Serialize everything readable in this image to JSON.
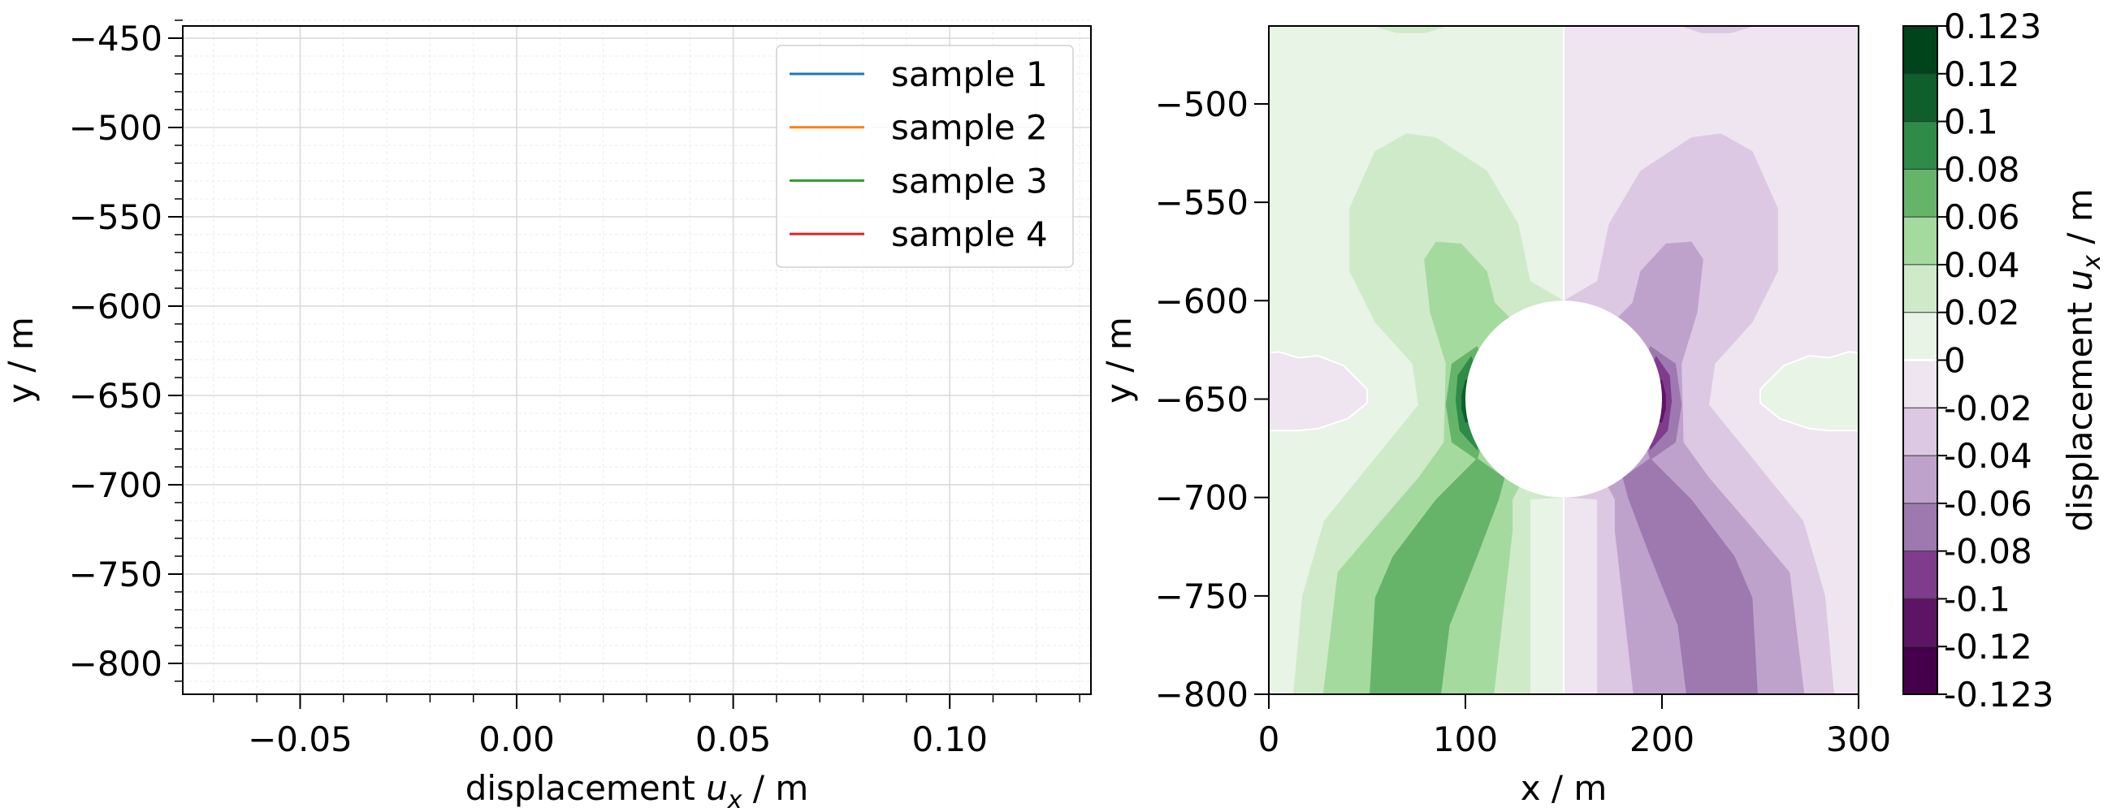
{
  "chart_data": [
    {
      "type": "line",
      "xlabel": {
        "pre": "displacement ",
        "var": "u",
        "sub": "x",
        "post": " / m"
      },
      "ylabel": "y / m",
      "xlim": [
        -0.0771,
        0.1326
      ],
      "ylim": [
        -817.3,
        -443.2
      ],
      "xticks": [
        -0.05,
        0.0,
        0.05,
        0.1
      ],
      "xtick_labels": [
        "−0.05",
        "0.00",
        "0.05",
        "0.10"
      ],
      "yticks": [
        -450,
        -500,
        -550,
        -600,
        -650,
        -700,
        -750,
        -800
      ],
      "ytick_labels": [
        "−450",
        "−500",
        "−550",
        "−600",
        "−650",
        "−700",
        "−750",
        "−800"
      ],
      "grid": true,
      "minor_grid": true,
      "legend_position": "top-right",
      "series": [
        {
          "name": "sample 1",
          "color": "#1f77b4",
          "x": [],
          "y": []
        },
        {
          "name": "sample 2",
          "color": "#ff7f0e",
          "x": [],
          "y": []
        },
        {
          "name": "sample 3",
          "color": "#2ca02c",
          "x": [],
          "y": []
        },
        {
          "name": "sample 4",
          "color": "#d62728",
          "x": [],
          "y": []
        }
      ]
    },
    {
      "type": "heatmap",
      "subtype": "filled-contour",
      "xlabel": "x / m",
      "ylabel": "y / m",
      "xlim": [
        0,
        300
      ],
      "ylim": [
        -800,
        -460.4
      ],
      "xticks": [
        0,
        100,
        200,
        300
      ],
      "xtick_labels": [
        "0",
        "100",
        "200",
        "300"
      ],
      "yticks": [
        -500,
        -550,
        -600,
        -650,
        -700,
        -750,
        -800
      ],
      "ytick_labels": [
        "−500",
        "−550",
        "−600",
        "−650",
        "−700",
        "−750",
        "−800"
      ],
      "hole": {
        "center": [
          150,
          -650
        ],
        "radius": 50
      },
      "colormap": "PRGn",
      "colorbar": {
        "label": {
          "pre": "displacement ",
          "var": "u",
          "sub": "x",
          "post": " / m"
        },
        "levels": [
          -0.123,
          -0.12,
          -0.1,
          -0.08,
          -0.06,
          -0.04,
          -0.02,
          0,
          0.02,
          0.04,
          0.06,
          0.08,
          0.1,
          0.12,
          0.123
        ],
        "level_labels": [
          "-0.123",
          "-0.12",
          "-0.1",
          "-0.08",
          "-0.06",
          "-0.04",
          "-0.02",
          "0",
          "0.02",
          "0.04",
          "0.06",
          "0.08",
          "0.1",
          "0.12",
          "0.123"
        ],
        "colors": [
          "#45004c",
          "#5e1465",
          "#7f3c8d",
          "#9d79b0",
          "#bea2cb",
          "#dcc8e2",
          "#eee5f0",
          "#e8f4e5",
          "#cfeac9",
          "#a5da9f",
          "#66b46a",
          "#2e8b48",
          "#0e5f2c",
          "#00441b"
        ]
      }
    }
  ]
}
